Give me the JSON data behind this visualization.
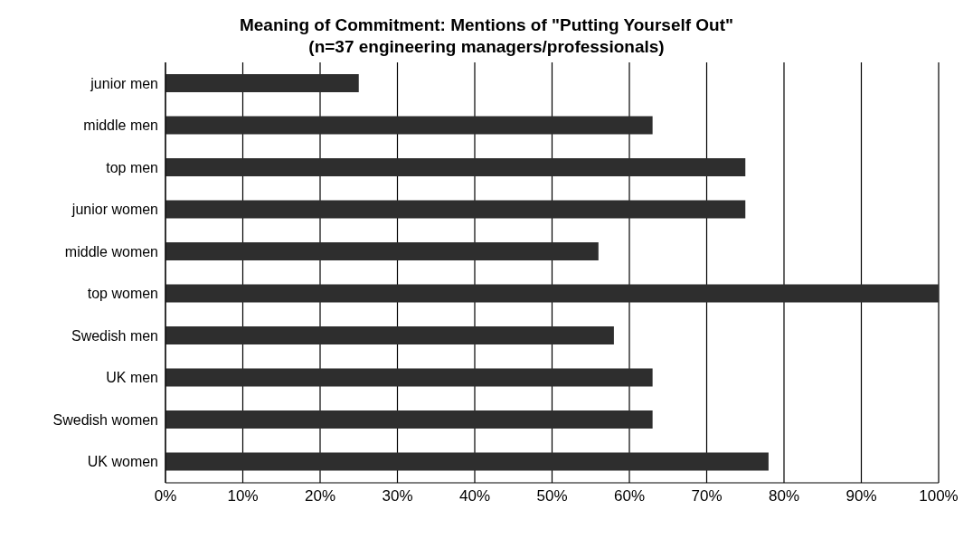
{
  "chart_data": {
    "type": "bar",
    "orientation": "horizontal",
    "title": "Meaning of Commitment: Mentions of \"Putting Yourself Out\"",
    "subtitle": "(n=37 engineering managers/professionals)",
    "categories": [
      "junior men",
      "middle men",
      "top men",
      "junior women",
      "middle women",
      "top women",
      "Swedish men",
      "UK men",
      "Swedish women",
      "UK women"
    ],
    "values": [
      25,
      63,
      75,
      75,
      56,
      100,
      58,
      63,
      63,
      78
    ],
    "color": "#2e2e2e",
    "xlim": [
      0,
      100
    ],
    "xticks": [
      {
        "value": 0,
        "label": "0%"
      },
      {
        "value": 10,
        "label": "10%"
      },
      {
        "value": 20,
        "label": "20%"
      },
      {
        "value": 30,
        "label": "30%"
      },
      {
        "value": 40,
        "label": "40%"
      },
      {
        "value": 50,
        "label": "50%"
      },
      {
        "value": 60,
        "label": "60%"
      },
      {
        "value": 70,
        "label": "70%"
      },
      {
        "value": 80,
        "label": "80%"
      },
      {
        "value": 90,
        "label": "90%"
      },
      {
        "value": 100,
        "label": "100%"
      }
    ],
    "grid": "x",
    "legend": false
  }
}
